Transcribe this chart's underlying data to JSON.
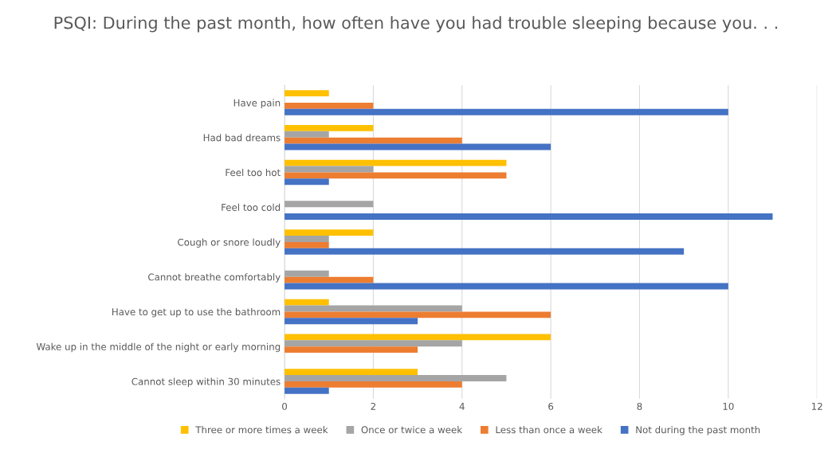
{
  "chart_data": {
    "type": "bar",
    "orientation": "horizontal",
    "title": "PSQI: During the past month, how often have you had trouble sleeping because you. . .",
    "categories": [
      "Have pain",
      "Had bad dreams",
      "Feel too hot",
      "Feel too cold",
      "Cough or snore loudly",
      "Cannot breathe comfortably",
      "Have to get up to use the bathroom",
      "Wake up in the middle of the night or early morning",
      "Cannot sleep within 30 minutes"
    ],
    "series": [
      {
        "name": "Three or more times a week",
        "color": "#ffc000",
        "values": [
          1,
          2,
          5,
          0,
          2,
          0,
          1,
          6,
          3
        ]
      },
      {
        "name": "Once or twice a week",
        "color": "#a5a5a5",
        "values": [
          0,
          1,
          2,
          2,
          1,
          1,
          4,
          4,
          5
        ]
      },
      {
        "name": "Less than once a week",
        "color": "#ed7d31",
        "values": [
          2,
          4,
          5,
          0,
          1,
          2,
          6,
          3,
          4
        ]
      },
      {
        "name": "Not during the past month",
        "color": "#4472c4",
        "values": [
          10,
          6,
          1,
          11,
          9,
          10,
          3,
          0,
          1
        ]
      }
    ],
    "xlim": [
      0,
      12
    ],
    "xticks": [
      0,
      2,
      4,
      6,
      8,
      10,
      12
    ],
    "grid": "x",
    "legend": "bottom"
  }
}
